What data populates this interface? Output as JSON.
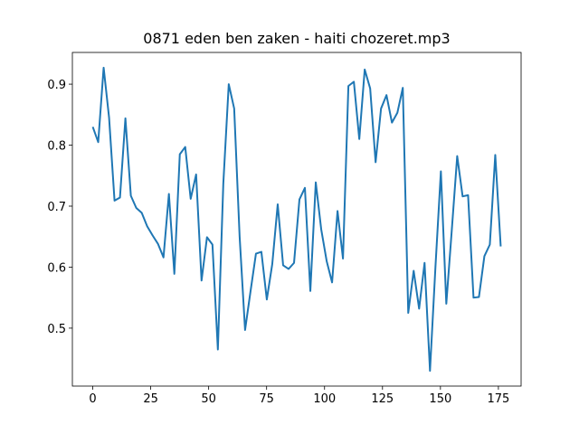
{
  "chart_data": {
    "type": "line",
    "title": "0871 eden ben zaken - haiti chozeret.mp3",
    "x": [
      0,
      2.35,
      4.69,
      7.04,
      9.39,
      11.73,
      14.08,
      16.43,
      18.77,
      21.12,
      23.47,
      25.81,
      28.16,
      30.51,
      32.85,
      35.2,
      37.55,
      39.89,
      42.24,
      44.59,
      46.93,
      49.28,
      51.63,
      53.97,
      56.32,
      58.67,
      61.01,
      63.36,
      65.71,
      68.05,
      70.4,
      72.75,
      75.09,
      77.44,
      79.79,
      82.13,
      84.48,
      86.83,
      89.17,
      91.52,
      93.87,
      96.21,
      98.56,
      100.91,
      103.25,
      105.6,
      107.95,
      110.29,
      112.64,
      114.99,
      117.33,
      119.68,
      122.03,
      124.37,
      126.72,
      129.07,
      131.41,
      133.76,
      136.11,
      138.45,
      140.8,
      143.15,
      145.49,
      147.84,
      150.19,
      152.53,
      154.88,
      157.23,
      159.57,
      161.92,
      164.27,
      166.61,
      168.96,
      171.31,
      173.65,
      176
    ],
    "series": [
      {
        "color": "#1f77b4",
        "values": [
          0.83,
          0.805,
          0.927,
          0.845,
          0.709,
          0.714,
          0.844,
          0.717,
          0.697,
          0.689,
          0.667,
          0.652,
          0.638,
          0.616,
          0.72,
          0.589,
          0.785,
          0.797,
          0.712,
          0.752,
          0.578,
          0.649,
          0.637,
          0.465,
          0.737,
          0.9,
          0.86,
          0.65,
          0.497,
          0.56,
          0.622,
          0.625,
          0.547,
          0.605,
          0.703,
          0.603,
          0.597,
          0.607,
          0.711,
          0.73,
          0.561,
          0.739,
          0.662,
          0.61,
          0.575,
          0.692,
          0.614,
          0.897,
          0.904,
          0.81,
          0.924,
          0.893,
          0.772,
          0.86,
          0.882,
          0.837,
          0.853,
          0.894,
          0.525,
          0.594,
          0.532,
          0.607,
          0.43,
          0.6,
          0.757,
          0.54,
          0.66,
          0.782,
          0.716,
          0.718,
          0.55,
          0.551,
          0.618,
          0.637,
          0.784,
          0.634
        ]
      }
    ],
    "xlim": [
      -8.8,
      184.8
    ],
    "xticks": [
      0,
      25,
      50,
      75,
      100,
      125,
      150,
      175
    ],
    "ylim": [
      0.405,
      0.952
    ],
    "yticks": [
      0.5,
      0.6,
      0.7,
      0.8,
      0.9
    ]
  }
}
